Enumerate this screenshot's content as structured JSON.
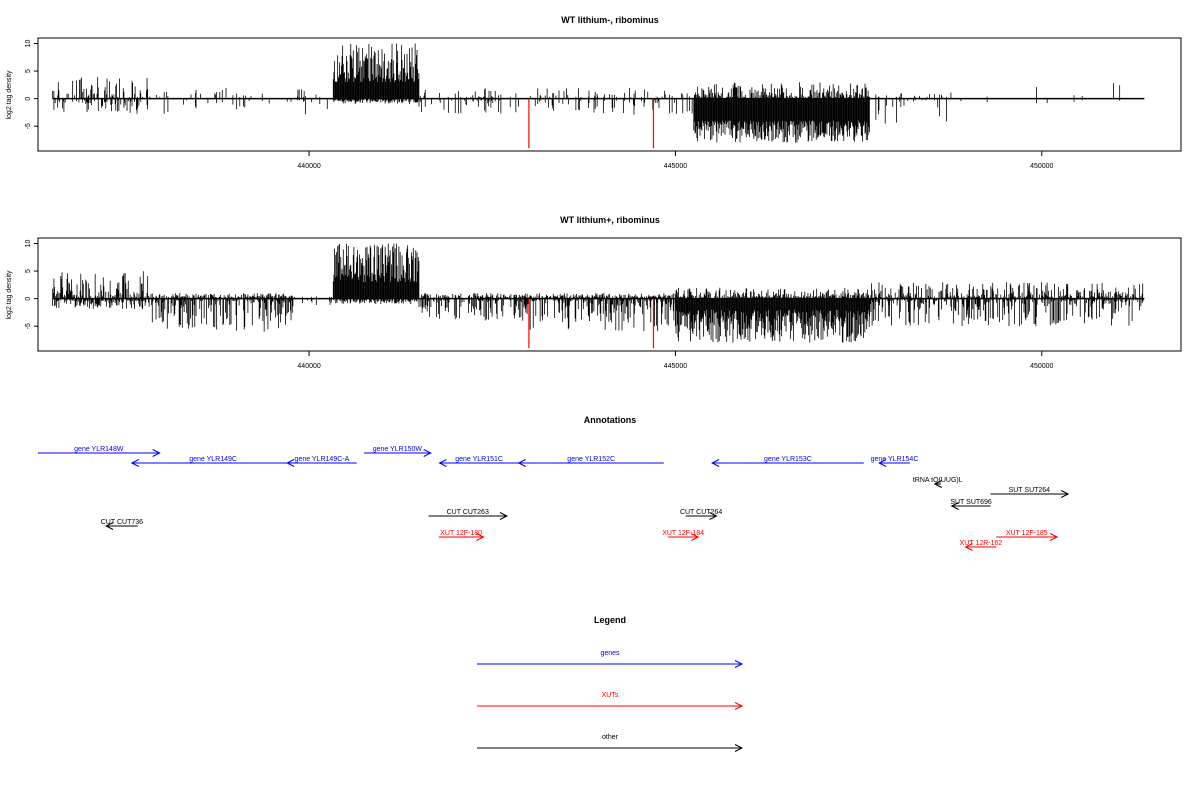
{
  "chart_data": [
    {
      "type": "bar",
      "title": "WT lithium-, ribominus",
      "ylabel": "log2 tag density",
      "xlabel": "",
      "ylim": [
        -9.5,
        11
      ],
      "y_ticks": [
        -5,
        0,
        5,
        10
      ],
      "x_range": [
        436300,
        451900
      ],
      "x_ticks": [
        440000,
        445000,
        450000
      ],
      "x_tick_labels": [
        "440000",
        "445000",
        "450000"
      ],
      "data_start": 436500,
      "data_end": 451400,
      "mark_color": "#000000",
      "highlight_color": "#ff0000",
      "highlight_positions": [
        443000,
        444700
      ],
      "highlight_value": -9,
      "regions": [
        {
          "start": 436500,
          "end": 437800,
          "density": 0.6,
          "plus_max": 4,
          "minus_max": 3
        },
        {
          "start": 437800,
          "end": 440300,
          "density": 0.2,
          "plus_max": 2,
          "minus_max": 3
        },
        {
          "start": 440330,
          "end": 441500,
          "density": 1.0,
          "plus_max": 10,
          "minus_max": 1,
          "plus_min": 3
        },
        {
          "start": 441500,
          "end": 445250,
          "density": 0.3,
          "plus_max": 2,
          "minus_max": 3
        },
        {
          "start": 445250,
          "end": 447650,
          "density": 1.0,
          "plus_max": 3,
          "minus_max": 8,
          "minus_min": 4
        },
        {
          "start": 447650,
          "end": 448700,
          "density": 0.3,
          "plus_max": 1,
          "minus_max": 5
        },
        {
          "start": 448700,
          "end": 451400,
          "density": 0.03,
          "plus_max": 3,
          "minus_max": 1
        }
      ]
    },
    {
      "type": "bar",
      "title": "WT lithium+, ribominus",
      "ylabel": "log2 tag density",
      "xlabel": "",
      "ylim": [
        -9.5,
        11
      ],
      "y_ticks": [
        -5,
        0,
        5,
        10
      ],
      "x_range": [
        436300,
        451900
      ],
      "x_ticks": [
        440000,
        445000,
        450000
      ],
      "x_tick_labels": [
        "440000",
        "445000",
        "450000"
      ],
      "data_start": 436500,
      "data_end": 451400,
      "mark_color": "#000000",
      "highlight_color": "#ff0000",
      "highlight_positions": [
        443000,
        444700
      ],
      "highlight_value": -9,
      "regions": [
        {
          "start": 436500,
          "end": 437800,
          "density": 1.0,
          "plus_max": 5,
          "minus_max": 2
        },
        {
          "start": 437800,
          "end": 439800,
          "density": 1.0,
          "plus_max": 1,
          "minus_max": 6
        },
        {
          "start": 439800,
          "end": 440330,
          "density": 0.2,
          "plus_max": 1,
          "minus_max": 2
        },
        {
          "start": 440330,
          "end": 441500,
          "density": 1.0,
          "plus_max": 10,
          "minus_max": 1,
          "plus_min": 3
        },
        {
          "start": 441500,
          "end": 443000,
          "density": 0.8,
          "plus_max": 1,
          "minus_max": 4
        },
        {
          "start": 443000,
          "end": 445000,
          "density": 1.0,
          "plus_max": 1,
          "minus_max": 6
        },
        {
          "start": 445000,
          "end": 447650,
          "density": 1.0,
          "plus_max": 2,
          "minus_max": 8,
          "minus_min": 2
        },
        {
          "start": 447650,
          "end": 451400,
          "density": 0.9,
          "plus_max": 3,
          "minus_max": 5
        }
      ]
    },
    {
      "type": "other",
      "title": "Annotations",
      "x_range": [
        436300,
        451900
      ],
      "features": [
        {
          "label": "gene YLR148W",
          "kind": "gene",
          "start": 436300,
          "end": 437960,
          "strand": "+",
          "row": 0
        },
        {
          "label": "gene YLR149C",
          "kind": "gene",
          "start": 437580,
          "end": 439800,
          "strand": "-",
          "row": 1
        },
        {
          "label": "gene YLR149C-A",
          "kind": "gene",
          "start": 439700,
          "end": 440650,
          "strand": "-",
          "row": 1
        },
        {
          "label": "gene YLR150W",
          "kind": "gene",
          "start": 440750,
          "end": 441660,
          "strand": "+",
          "row": 0
        },
        {
          "label": "gene YLR151C",
          "kind": "gene",
          "start": 441780,
          "end": 442860,
          "strand": "-",
          "row": 1
        },
        {
          "label": "gene YLR152C",
          "kind": "gene",
          "start": 442860,
          "end": 444840,
          "strand": "-",
          "row": 1
        },
        {
          "label": "gene YLR153C",
          "kind": "gene",
          "start": 445500,
          "end": 447570,
          "strand": "-",
          "row": 1
        },
        {
          "label": "gene YLR154C",
          "kind": "gene",
          "start": 447780,
          "end": 448200,
          "strand": "-",
          "row": 1
        },
        {
          "label": "tRNA tQ(UUG)L",
          "kind": "other",
          "start": 448540,
          "end": 448620,
          "strand": "-",
          "row": 2
        },
        {
          "label": "SUT SUT264",
          "kind": "other",
          "start": 449300,
          "end": 450360,
          "strand": "+",
          "row": 3
        },
        {
          "label": "SUT SUT696",
          "kind": "other",
          "start": 448770,
          "end": 449300,
          "strand": "-",
          "row": 4
        },
        {
          "label": "CUT CUT263",
          "kind": "other",
          "start": 441630,
          "end": 442700,
          "strand": "+",
          "row": 5
        },
        {
          "label": "CUT CUT264",
          "kind": "other",
          "start": 445140,
          "end": 445560,
          "strand": "+",
          "row": 5
        },
        {
          "label": "CUT CUT736",
          "kind": "other",
          "start": 437230,
          "end": 437660,
          "strand": "-",
          "row": 6
        },
        {
          "label": "XUT 12F-180",
          "kind": "xut",
          "start": 441770,
          "end": 442380,
          "strand": "+",
          "row": 7
        },
        {
          "label": "XUT 12F-184",
          "kind": "xut",
          "start": 444900,
          "end": 445310,
          "strand": "+",
          "row": 7
        },
        {
          "label": "XUT 12F-185",
          "kind": "xut",
          "start": 449380,
          "end": 450210,
          "strand": "+",
          "row": 7
        },
        {
          "label": "XUT 12R-162",
          "kind": "xut",
          "start": 448960,
          "end": 449380,
          "strand": "-",
          "row": 8
        }
      ]
    },
    {
      "type": "other",
      "title": "Legend",
      "entries": [
        {
          "label": "genes",
          "kind": "gene"
        },
        {
          "label": "XUTs",
          "kind": "xut"
        },
        {
          "label": "other",
          "kind": "other"
        }
      ]
    }
  ],
  "colors": {
    "gene": "#0000ff",
    "xut": "#ff0000",
    "other": "#000000"
  }
}
